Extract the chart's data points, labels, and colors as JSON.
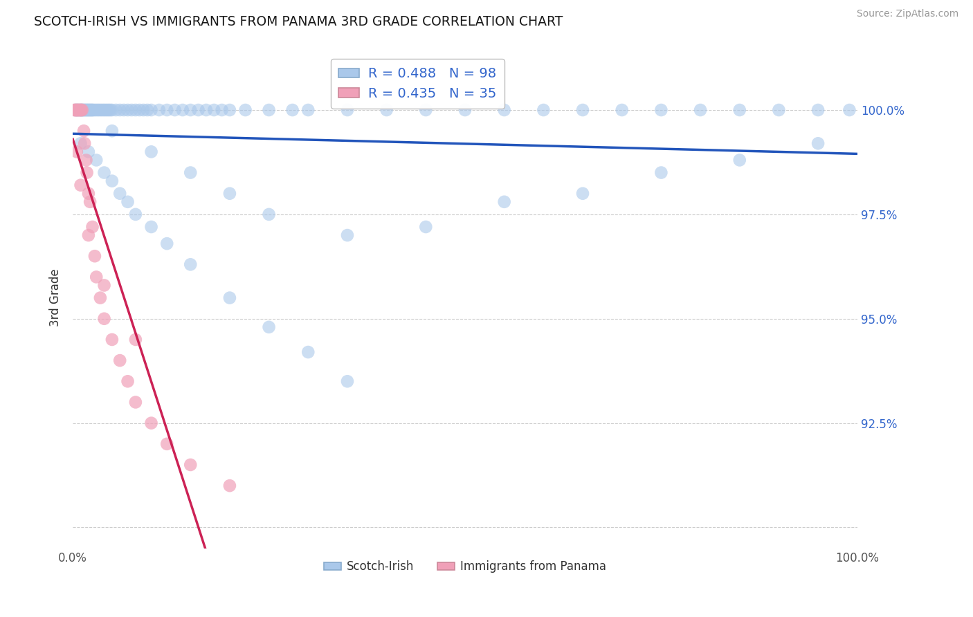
{
  "title": "SCOTCH-IRISH VS IMMIGRANTS FROM PANAMA 3RD GRADE CORRELATION CHART",
  "source": "Source: ZipAtlas.com",
  "ylabel": "3rd Grade",
  "blue_label": "Scotch-Irish",
  "pink_label": "Immigrants from Panama",
  "blue_R": 0.488,
  "blue_N": 98,
  "pink_R": 0.435,
  "pink_N": 35,
  "blue_color": "#aac8ea",
  "pink_color": "#f0a0b8",
  "blue_line_color": "#2255bb",
  "pink_line_color": "#cc2255",
  "legend_text_color": "#3366cc",
  "background_color": "#ffffff",
  "xlim": [
    0,
    100
  ],
  "ylim": [
    89.5,
    101.5
  ],
  "ytick_vals": [
    90.0,
    92.5,
    95.0,
    97.5,
    100.0
  ],
  "ytick_labels": [
    "",
    "92.5%",
    "95.0%",
    "97.5%",
    "100.0%"
  ],
  "blue_x": [
    0.3,
    0.5,
    0.6,
    0.8,
    1.0,
    1.1,
    1.2,
    1.3,
    1.4,
    1.5,
    1.6,
    1.7,
    1.8,
    1.9,
    2.0,
    2.1,
    2.2,
    2.3,
    2.4,
    2.5,
    2.6,
    2.8,
    3.0,
    3.2,
    3.4,
    3.6,
    3.8,
    4.0,
    4.2,
    4.4,
    4.6,
    4.8,
    5.0,
    5.5,
    6.0,
    6.5,
    7.0,
    7.5,
    8.0,
    8.5,
    9.0,
    9.5,
    10.0,
    11.0,
    12.0,
    13.0,
    14.0,
    15.0,
    16.0,
    17.0,
    18.0,
    19.0,
    20.0,
    22.0,
    25.0,
    28.0,
    30.0,
    35.0,
    40.0,
    45.0,
    50.0,
    55.0,
    60.0,
    65.0,
    70.0,
    75.0,
    80.0,
    85.0,
    90.0,
    95.0,
    99.0,
    1.0,
    2.0,
    3.0,
    4.0,
    5.0,
    6.0,
    7.0,
    8.0,
    10.0,
    12.0,
    15.0,
    20.0,
    25.0,
    30.0,
    35.0,
    5.0,
    10.0,
    15.0,
    20.0,
    25.0,
    35.0,
    45.0,
    55.0,
    65.0,
    75.0,
    85.0,
    95.0
  ],
  "blue_y": [
    100.0,
    100.0,
    100.0,
    100.0,
    100.0,
    100.0,
    100.0,
    100.0,
    100.0,
    100.0,
    100.0,
    100.0,
    100.0,
    100.0,
    100.0,
    100.0,
    100.0,
    100.0,
    100.0,
    100.0,
    100.0,
    100.0,
    100.0,
    100.0,
    100.0,
    100.0,
    100.0,
    100.0,
    100.0,
    100.0,
    100.0,
    100.0,
    100.0,
    100.0,
    100.0,
    100.0,
    100.0,
    100.0,
    100.0,
    100.0,
    100.0,
    100.0,
    100.0,
    100.0,
    100.0,
    100.0,
    100.0,
    100.0,
    100.0,
    100.0,
    100.0,
    100.0,
    100.0,
    100.0,
    100.0,
    100.0,
    100.0,
    100.0,
    100.0,
    100.0,
    100.0,
    100.0,
    100.0,
    100.0,
    100.0,
    100.0,
    100.0,
    100.0,
    100.0,
    100.0,
    100.0,
    99.2,
    99.0,
    98.8,
    98.5,
    98.3,
    98.0,
    97.8,
    97.5,
    97.2,
    96.8,
    96.3,
    95.5,
    94.8,
    94.2,
    93.5,
    99.5,
    99.0,
    98.5,
    98.0,
    97.5,
    97.0,
    97.2,
    97.8,
    98.0,
    98.5,
    98.8,
    99.2
  ],
  "pink_x": [
    0.2,
    0.3,
    0.4,
    0.5,
    0.6,
    0.7,
    0.8,
    0.9,
    1.0,
    1.1,
    1.2,
    1.4,
    1.5,
    1.7,
    1.8,
    2.0,
    2.2,
    2.5,
    2.8,
    3.0,
    3.5,
    4.0,
    5.0,
    6.0,
    7.0,
    8.0,
    10.0,
    12.0,
    15.0,
    20.0,
    0.5,
    1.0,
    2.0,
    4.0,
    8.0
  ],
  "pink_y": [
    100.0,
    100.0,
    100.0,
    100.0,
    100.0,
    100.0,
    100.0,
    100.0,
    100.0,
    100.0,
    100.0,
    99.5,
    99.2,
    98.8,
    98.5,
    98.0,
    97.8,
    97.2,
    96.5,
    96.0,
    95.5,
    95.0,
    94.5,
    94.0,
    93.5,
    93.0,
    92.5,
    92.0,
    91.5,
    91.0,
    99.0,
    98.2,
    97.0,
    95.8,
    94.5
  ]
}
